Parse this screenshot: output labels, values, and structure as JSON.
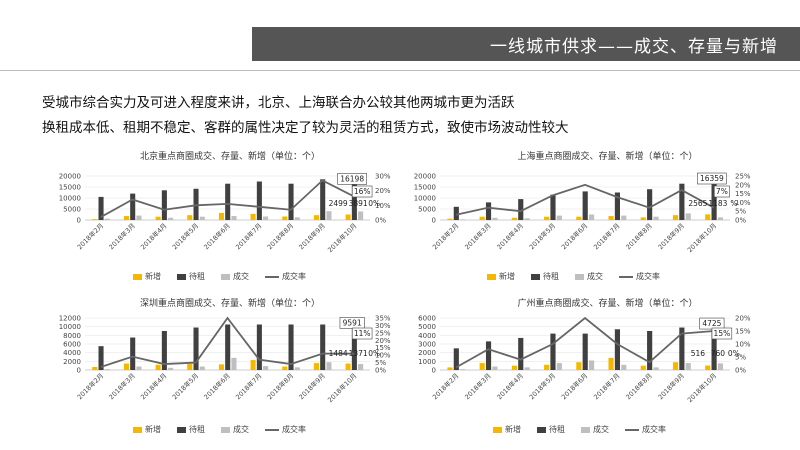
{
  "header": {
    "title": "一线城市供求——成交、存量与新增"
  },
  "paragraphs": [
    "受城市综合实力及可进入程度来讲，北京、上海联合办公较其他两城市更为活跃",
    "换租成本低、租期不稳定、客群的属性决定了较为灵活的租赁方式，致使市场波动性较大"
  ],
  "colors": {
    "new": "#f5b800",
    "stock": "#404040",
    "deal": "#bfbfbf",
    "rate": "#666666"
  },
  "chart_data": [
    {
      "type": "bar",
      "title": "北京重点商圈成交、存量、新增（单位：个）",
      "categories": [
        "2018年2月",
        "2018年3月",
        "2018年4月",
        "2018年5月",
        "2018年6月",
        "2018年7月",
        "2018年8月",
        "2018年9月",
        "2018年10月"
      ],
      "series": [
        {
          "name": "新增",
          "values": [
            400,
            1800,
            1500,
            2200,
            3200,
            2800,
            1600,
            2200,
            2499
          ]
        },
        {
          "name": "待租",
          "values": [
            10500,
            12000,
            13500,
            14200,
            16500,
            17500,
            16500,
            18500,
            16198
          ]
        },
        {
          "name": "成交",
          "values": [
            600,
            2000,
            1000,
            1500,
            1800,
            1600,
            1200,
            4000,
            3891
          ]
        },
        {
          "name": "成交率",
          "axis": "right",
          "values": [
            0.02,
            0.14,
            0.07,
            0.1,
            0.11,
            0.09,
            0.07,
            0.27,
            0.16
          ]
        }
      ],
      "y_ticks": [
        "0",
        "5000",
        "10000",
        "15000",
        "20000"
      ],
      "ylim": [
        0,
        20000
      ],
      "y2_ticks": [
        "0%",
        "10%",
        "20%",
        "30%"
      ],
      "y2lim": [
        0,
        0.3
      ],
      "data_labels": {
        "stock": "16198",
        "rate": "16%",
        "new": "2499",
        "deal": "3891",
        "deal_pct": "0%"
      },
      "legend": "bottom"
    },
    {
      "type": "bar",
      "title": "上海重点商圈成交、存量、新增（单位：个）",
      "categories": [
        "2018年2月",
        "2018年3月",
        "2018年4月",
        "2018年5月",
        "2018年6月",
        "2018年7月",
        "2018年8月",
        "2018年9月",
        "2018年10月"
      ],
      "series": [
        {
          "name": "新增",
          "values": [
            600,
            1500,
            1000,
            1500,
            1500,
            1800,
            1200,
            2200,
            2565
          ]
        },
        {
          "name": "待租",
          "values": [
            6000,
            8000,
            9500,
            11500,
            13000,
            12500,
            14000,
            16500,
            16359
          ]
        },
        {
          "name": "成交",
          "values": [
            300,
            1000,
            800,
            2000,
            2500,
            2000,
            1500,
            3000,
            1183
          ]
        },
        {
          "name": "成交率",
          "axis": "right",
          "values": [
            0.03,
            0.07,
            0.05,
            0.14,
            0.2,
            0.13,
            0.07,
            0.17,
            0.07
          ]
        }
      ],
      "y_ticks": [
        "0",
        "5000",
        "10000",
        "15000",
        "20000"
      ],
      "ylim": [
        0,
        20000
      ],
      "y2_ticks": [
        "0%",
        "5%",
        "10%",
        "15%",
        "20%",
        "25%"
      ],
      "y2lim": [
        0,
        0.25
      ],
      "data_labels": {
        "stock": "16359",
        "rate": "7%",
        "new": "2565",
        "deal": "1183",
        "deal_pct": "%"
      },
      "legend": "bottom"
    },
    {
      "type": "bar",
      "title": "深圳重点商圈成交、存量、新增（单位：个）",
      "categories": [
        "2018年2月",
        "2018年3月",
        "2018年4月",
        "2018年5月",
        "2018年6月",
        "2018年7月",
        "2018年8月",
        "2018年9月",
        "2018年10月"
      ],
      "series": [
        {
          "name": "新增",
          "values": [
            700,
            1500,
            1200,
            1400,
            1300,
            2300,
            800,
            1600,
            1484
          ]
        },
        {
          "name": "待租",
          "values": [
            5500,
            7500,
            9000,
            9800,
            10500,
            10500,
            10500,
            10500,
            9591
          ]
        },
        {
          "name": "成交",
          "values": [
            200,
            800,
            500,
            800,
            2800,
            900,
            600,
            1800,
            1371
          ]
        },
        {
          "name": "成交率",
          "axis": "right",
          "values": [
            0.02,
            0.09,
            0.04,
            0.05,
            0.35,
            0.07,
            0.04,
            0.11,
            0.11
          ]
        }
      ],
      "y_ticks": [
        "0",
        "2000",
        "4000",
        "6000",
        "8000",
        "10000",
        "12000"
      ],
      "ylim": [
        0,
        12000
      ],
      "y2_ticks": [
        "0%",
        "5%",
        "10%",
        "15%",
        "20%",
        "25%",
        "30%",
        "35%"
      ],
      "y2lim": [
        0,
        0.35
      ],
      "data_labels": {
        "stock": "9591",
        "rate": "11%",
        "new": "1484",
        "deal": "1371",
        "deal_pct": "0%"
      },
      "legend": "bottom"
    },
    {
      "type": "bar",
      "title": "广州重点商圈成交、存量、新增（单位：个）",
      "categories": [
        "2018年2月",
        "2018年3月",
        "2018年4月",
        "2018年5月",
        "2018年6月",
        "2018年7月",
        "2018年8月",
        "2018年9月",
        "2018年10月"
      ],
      "series": [
        {
          "name": "新增",
          "values": [
            300,
            800,
            500,
            600,
            900,
            1400,
            500,
            900,
            516
          ]
        },
        {
          "name": "待租",
          "values": [
            2500,
            3300,
            3700,
            4200,
            4200,
            4700,
            4500,
            4900,
            4725
          ]
        },
        {
          "name": "成交",
          "values": [
            100,
            400,
            300,
            800,
            1100,
            600,
            300,
            800,
            760
          ]
        },
        {
          "name": "成交率",
          "axis": "right",
          "values": [
            0.01,
            0.08,
            0.04,
            0.1,
            0.2,
            0.1,
            0.03,
            0.14,
            0.15
          ]
        }
      ],
      "y_ticks": [
        "0",
        "1000",
        "2000",
        "3000",
        "4000",
        "5000",
        "6000"
      ],
      "ylim": [
        0,
        6000
      ],
      "y2_ticks": [
        "0%",
        "5%",
        "10%",
        "15%",
        "20%"
      ],
      "y2lim": [
        0,
        0.2
      ],
      "data_labels": {
        "stock": "4725",
        "rate": "15%",
        "new": "516",
        "deal": "760",
        "deal_pct": "0%"
      },
      "legend": "bottom"
    }
  ]
}
